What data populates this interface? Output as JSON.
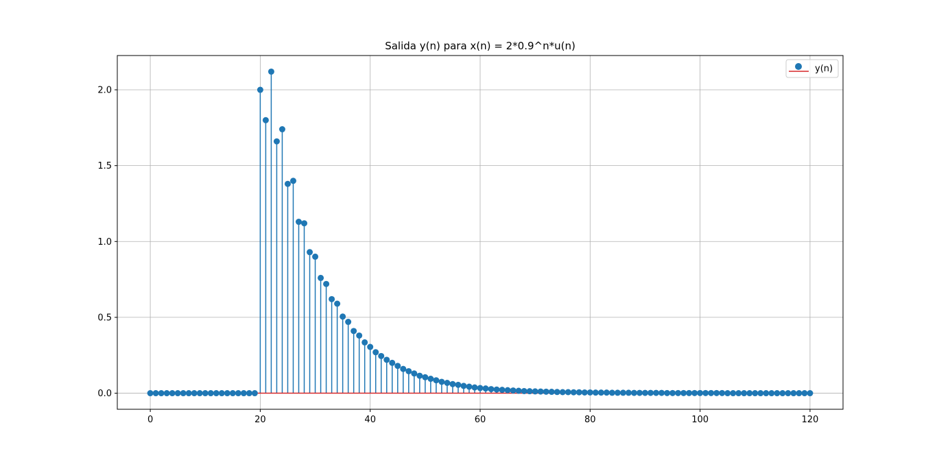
{
  "chart_data": {
    "type": "stem",
    "title": "Salida y(n) para x(n) = 2*0.9^n*u(n)",
    "xlabel": "",
    "ylabel": "",
    "xlim": [
      -6,
      126
    ],
    "ylim": [
      -0.106,
      2.226
    ],
    "xticks": [
      0,
      20,
      40,
      60,
      80,
      100,
      120
    ],
    "yticks": [
      0.0,
      0.5,
      1.0,
      1.5,
      2.0
    ],
    "xtick_labels": [
      "0",
      "20",
      "40",
      "60",
      "80",
      "100",
      "120"
    ],
    "ytick_labels": [
      "0.0",
      "0.5",
      "1.0",
      "1.5",
      "2.0"
    ],
    "grid": true,
    "legend": {
      "position": "top-right",
      "entries": [
        "y(n)"
      ]
    },
    "colors": {
      "stem": "#1f77b4",
      "baseline": "#d62728",
      "grid": "#b0b0b0"
    },
    "series": [
      {
        "name": "y(n)",
        "x": [
          0,
          1,
          2,
          3,
          4,
          5,
          6,
          7,
          8,
          9,
          10,
          11,
          12,
          13,
          14,
          15,
          16,
          17,
          18,
          19,
          20,
          21,
          22,
          23,
          24,
          25,
          26,
          27,
          28,
          29,
          30,
          31,
          32,
          33,
          34,
          35,
          36,
          37,
          38,
          39,
          40,
          41,
          42,
          43,
          44,
          45,
          46,
          47,
          48,
          49,
          50,
          51,
          52,
          53,
          54,
          55,
          56,
          57,
          58,
          59,
          60,
          61,
          62,
          63,
          64,
          65,
          66,
          67,
          68,
          69,
          70,
          71,
          72,
          73,
          74,
          75,
          76,
          77,
          78,
          79,
          80,
          81,
          82,
          83,
          84,
          85,
          86,
          87,
          88,
          89,
          90,
          91,
          92,
          93,
          94,
          95,
          96,
          97,
          98,
          99,
          100,
          101,
          102,
          103,
          104,
          105,
          106,
          107,
          108,
          109,
          110,
          111,
          112,
          113,
          114,
          115,
          116,
          117,
          118,
          119,
          120
        ],
        "y": [
          0,
          0,
          0,
          0,
          0,
          0,
          0,
          0,
          0,
          0,
          0,
          0,
          0,
          0,
          0,
          0,
          0,
          0,
          0,
          0,
          2.0,
          1.8,
          2.12,
          1.66,
          1.74,
          1.38,
          1.4,
          1.13,
          1.12,
          0.93,
          0.9,
          0.76,
          0.72,
          0.62,
          0.59,
          0.505,
          0.47,
          0.41,
          0.38,
          0.335,
          0.305,
          0.27,
          0.245,
          0.22,
          0.2,
          0.18,
          0.16,
          0.145,
          0.13,
          0.115,
          0.105,
          0.095,
          0.085,
          0.075,
          0.068,
          0.06,
          0.055,
          0.048,
          0.043,
          0.038,
          0.034,
          0.031,
          0.027,
          0.024,
          0.022,
          0.02,
          0.018,
          0.016,
          0.014,
          0.013,
          0.012,
          0.011,
          0.01,
          0.009,
          0.008,
          0.007,
          0.007,
          0.006,
          0.006,
          0.005,
          0.005,
          0.004,
          0.004,
          0.004,
          0.003,
          0.003,
          0.003,
          0.003,
          0.002,
          0.002,
          0.002,
          0.002,
          0.002,
          0.002,
          0.001,
          0.001,
          0.001,
          0.001,
          0.001,
          0.001,
          0.001,
          0.001,
          0.001,
          0.001,
          0.001,
          0,
          0,
          0,
          0,
          0,
          0,
          0,
          0,
          0,
          0,
          0,
          0,
          0,
          0,
          0,
          0
        ]
      }
    ]
  }
}
